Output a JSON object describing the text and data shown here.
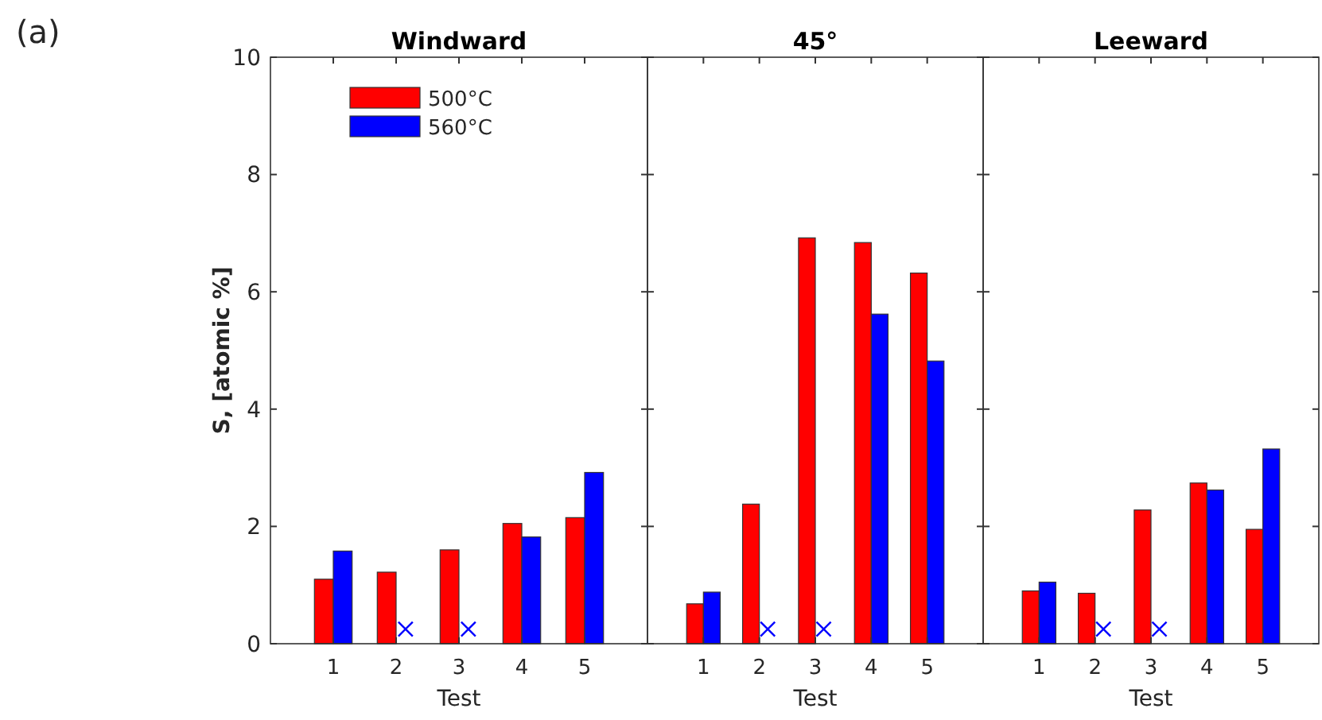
{
  "chart_data": [
    {
      "type": "bar",
      "title": "Windward",
      "xlabel": "Test",
      "ylabel": "S, [atomic %]",
      "annotations": [
        "(a)"
      ],
      "categories": [
        "1",
        "2",
        "3",
        "4",
        "5"
      ],
      "ylim": [
        0,
        10
      ],
      "yticks": [
        0,
        2,
        4,
        6,
        8,
        10
      ],
      "legend": "top left",
      "grid": false,
      "series": [
        {
          "name": "500°C",
          "color": "#ff0000",
          "values": [
            1.1,
            1.22,
            1.6,
            2.05,
            2.15
          ]
        },
        {
          "name": "560°C",
          "color": "#0000ff",
          "values": [
            1.58,
            null,
            null,
            1.82,
            2.92
          ]
        },
        {
          "type": "scatter",
          "marker": "cross",
          "color": "#0000ff",
          "x": [
            "2",
            "3"
          ],
          "values": [
            0.25,
            0.25
          ]
        }
      ]
    },
    {
      "type": "bar",
      "title": "45°",
      "xlabel": "Test",
      "categories": [
        "1",
        "2",
        "3",
        "4",
        "5"
      ],
      "ylim": [
        0,
        10
      ],
      "yticks": [
        0,
        2,
        4,
        6,
        8,
        10
      ],
      "tick_labels": "x",
      "grid": false,
      "series": [
        {
          "color": "#ff0000",
          "values": [
            0.68,
            2.38,
            6.92,
            6.84,
            6.32
          ]
        },
        {
          "color": "#0000ff",
          "values": [
            0.88,
            null,
            null,
            5.62,
            4.82
          ]
        },
        {
          "type": "scatter",
          "marker": "cross",
          "color": "#0000ff",
          "x": [
            "2",
            "3"
          ],
          "values": [
            0.25,
            0.25
          ]
        }
      ]
    },
    {
      "type": "bar",
      "title": "Leeward",
      "xlabel": "Test",
      "categories": [
        "1",
        "2",
        "3",
        "4",
        "5"
      ],
      "ylim": [
        0,
        10
      ],
      "yticks": [
        0,
        2,
        4,
        6,
        8,
        10
      ],
      "tick_labels": "x",
      "grid": false,
      "series": [
        {
          "color": "#ff0000",
          "values": [
            0.9,
            0.86,
            2.28,
            2.74,
            1.95
          ]
        },
        {
          "color": "#0000ff",
          "values": [
            1.05,
            null,
            null,
            2.62,
            3.32
          ]
        },
        {
          "type": "scatter",
          "marker": "cross",
          "color": "#0000ff",
          "x": [
            "2",
            "3"
          ],
          "values": [
            0.25,
            0.25
          ]
        }
      ]
    }
  ]
}
